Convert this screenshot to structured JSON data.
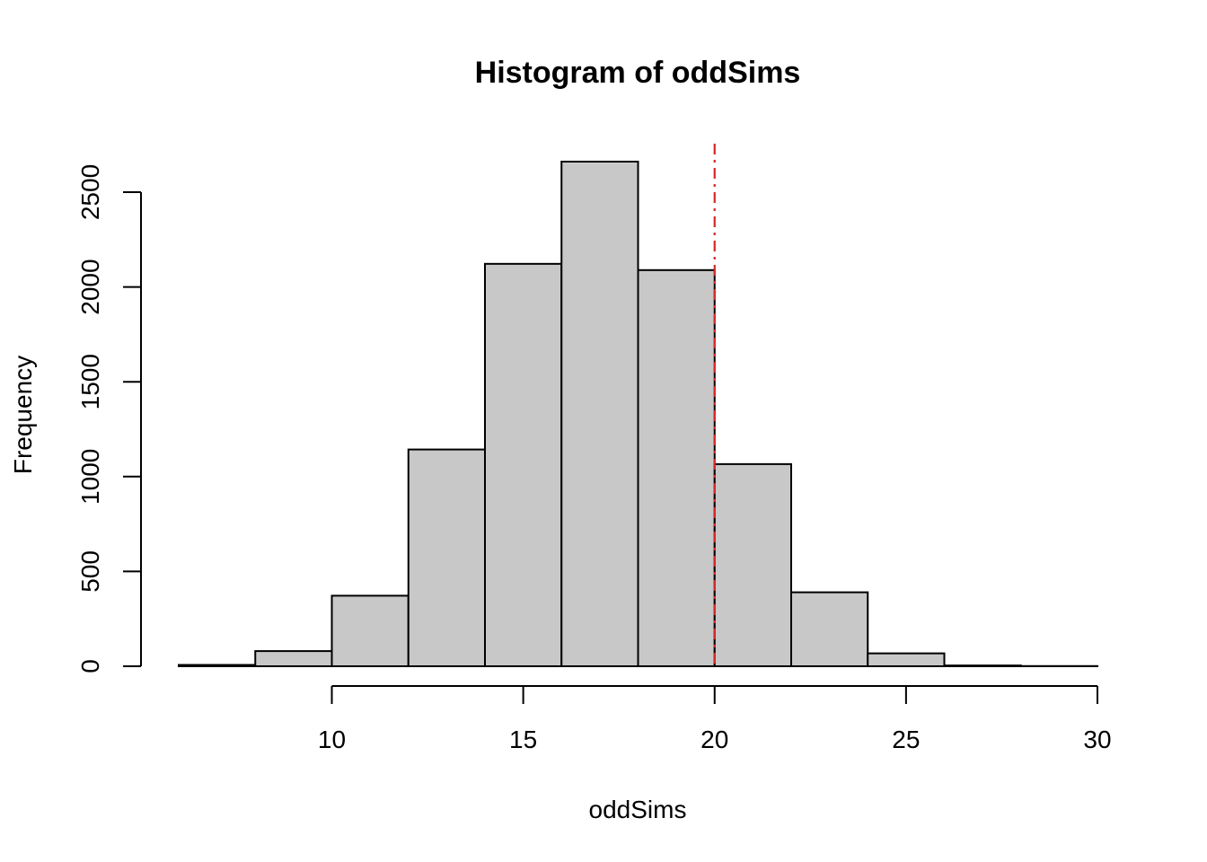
{
  "chart_data": {
    "type": "bar",
    "title": "Histogram of oddSims",
    "xlabel": "oddSims",
    "ylabel": "Frequency",
    "bins": [
      {
        "start": 6,
        "end": 8,
        "count": 7
      },
      {
        "start": 8,
        "end": 10,
        "count": 80
      },
      {
        "start": 10,
        "end": 12,
        "count": 372
      },
      {
        "start": 12,
        "end": 14,
        "count": 1143
      },
      {
        "start": 14,
        "end": 16,
        "count": 2122
      },
      {
        "start": 16,
        "end": 18,
        "count": 2661
      },
      {
        "start": 18,
        "end": 20,
        "count": 2089
      },
      {
        "start": 20,
        "end": 22,
        "count": 1066
      },
      {
        "start": 22,
        "end": 24,
        "count": 390
      },
      {
        "start": 24,
        "end": 26,
        "count": 68
      },
      {
        "start": 26,
        "end": 28,
        "count": 4
      },
      {
        "start": 28,
        "end": 30,
        "count": 1
      }
    ],
    "x_ticks": [
      10,
      15,
      20,
      25,
      30
    ],
    "y_ticks": [
      0,
      500,
      1000,
      1500,
      2000,
      2500
    ],
    "xlim": [
      6,
      30
    ],
    "ylim": [
      0,
      2661
    ],
    "reference_line": {
      "x": 20,
      "color": "#d62728",
      "style": "dot-dash"
    },
    "bar_fill": "#c8c8c8",
    "grid": false
  }
}
